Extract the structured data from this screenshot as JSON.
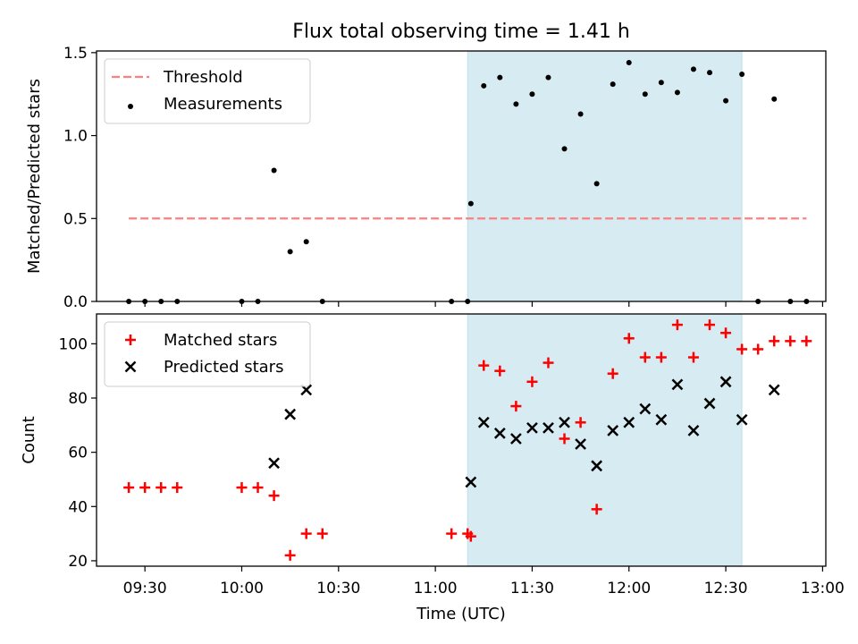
{
  "chart_data": {
    "title": "Flux total observing time = 1.41 h",
    "xlabel": "Time (UTC)",
    "x_type": "time",
    "xlim": [
      "09:15",
      "13:01"
    ],
    "xticks": [
      "09:30",
      "10:00",
      "10:30",
      "11:00",
      "11:30",
      "12:00",
      "12:30",
      "13:00"
    ],
    "shaded_interval": {
      "start": "11:10",
      "end": "12:35",
      "color": "#add8e6"
    },
    "panels": [
      {
        "type": "scatter",
        "ylabel": "Matched/Predicted stars",
        "ylim": [
          0,
          1.51
        ],
        "yticks": [
          0.0,
          0.5,
          1.0,
          1.5
        ],
        "legend_position": "upper-left",
        "threshold": {
          "name": "Threshold",
          "value": 0.5,
          "x_start": "09:25",
          "x_end": "12:55",
          "color": "#ff7f7f"
        },
        "series": [
          {
            "name": "Measurements",
            "marker": "dot",
            "color": "#000000",
            "points": [
              [
                "09:25",
                0.0
              ],
              [
                "09:30",
                0.0
              ],
              [
                "09:35",
                0.0
              ],
              [
                "09:40",
                0.0
              ],
              [
                "10:00",
                0.0
              ],
              [
                "10:05",
                0.0
              ],
              [
                "10:10",
                0.79
              ],
              [
                "10:15",
                0.3
              ],
              [
                "10:20",
                0.36
              ],
              [
                "10:25",
                0.0
              ],
              [
                "11:05",
                0.0
              ],
              [
                "11:10",
                0.0
              ],
              [
                "11:11",
                0.59
              ],
              [
                "11:15",
                1.3
              ],
              [
                "11:20",
                1.35
              ],
              [
                "11:25",
                1.19
              ],
              [
                "11:30",
                1.25
              ],
              [
                "11:35",
                1.35
              ],
              [
                "11:40",
                0.92
              ],
              [
                "11:45",
                1.13
              ],
              [
                "11:50",
                0.71
              ],
              [
                "11:55",
                1.31
              ],
              [
                "12:00",
                1.44
              ],
              [
                "12:05",
                1.25
              ],
              [
                "12:10",
                1.32
              ],
              [
                "12:15",
                1.26
              ],
              [
                "12:20",
                1.4
              ],
              [
                "12:25",
                1.38
              ],
              [
                "12:30",
                1.21
              ],
              [
                "12:35",
                1.37
              ],
              [
                "12:40",
                0.0
              ],
              [
                "12:45",
                1.22
              ],
              [
                "12:50",
                0.0
              ],
              [
                "12:55",
                0.0
              ]
            ]
          }
        ]
      },
      {
        "type": "scatter",
        "ylabel": "Count",
        "ylim": [
          18,
          111
        ],
        "yticks": [
          20,
          40,
          60,
          80,
          100
        ],
        "legend_position": "upper-left",
        "series": [
          {
            "name": "Matched stars",
            "marker": "plus",
            "color": "#ff0000",
            "points": [
              [
                "09:25",
                47
              ],
              [
                "09:30",
                47
              ],
              [
                "09:35",
                47
              ],
              [
                "09:40",
                47
              ],
              [
                "10:00",
                47
              ],
              [
                "10:05",
                47
              ],
              [
                "10:10",
                44
              ],
              [
                "10:15",
                22
              ],
              [
                "10:20",
                30
              ],
              [
                "10:25",
                30
              ],
              [
                "11:05",
                30
              ],
              [
                "11:10",
                30
              ],
              [
                "11:11",
                29
              ],
              [
                "11:15",
                92
              ],
              [
                "11:20",
                90
              ],
              [
                "11:25",
                77
              ],
              [
                "11:30",
                86
              ],
              [
                "11:35",
                93
              ],
              [
                "11:40",
                65
              ],
              [
                "11:45",
                71
              ],
              [
                "11:50",
                39
              ],
              [
                "11:55",
                89
              ],
              [
                "12:00",
                102
              ],
              [
                "12:05",
                95
              ],
              [
                "12:10",
                95
              ],
              [
                "12:15",
                107
              ],
              [
                "12:20",
                95
              ],
              [
                "12:25",
                107
              ],
              [
                "12:30",
                104
              ],
              [
                "12:35",
                98
              ],
              [
                "12:40",
                98
              ],
              [
                "12:45",
                101
              ],
              [
                "12:50",
                101
              ],
              [
                "12:55",
                101
              ]
            ]
          },
          {
            "name": "Predicted stars",
            "marker": "x",
            "color": "#000000",
            "points": [
              [
                "10:10",
                56
              ],
              [
                "10:15",
                74
              ],
              [
                "10:20",
                83
              ],
              [
                "11:11",
                49
              ],
              [
                "11:15",
                71
              ],
              [
                "11:20",
                67
              ],
              [
                "11:25",
                65
              ],
              [
                "11:30",
                69
              ],
              [
                "11:35",
                69
              ],
              [
                "11:40",
                71
              ],
              [
                "11:45",
                63
              ],
              [
                "11:50",
                55
              ],
              [
                "11:55",
                68
              ],
              [
                "12:00",
                71
              ],
              [
                "12:05",
                76
              ],
              [
                "12:10",
                72
              ],
              [
                "12:15",
                85
              ],
              [
                "12:20",
                68
              ],
              [
                "12:25",
                78
              ],
              [
                "12:30",
                86
              ],
              [
                "12:35",
                72
              ],
              [
                "12:45",
                83
              ]
            ]
          }
        ]
      }
    ]
  }
}
